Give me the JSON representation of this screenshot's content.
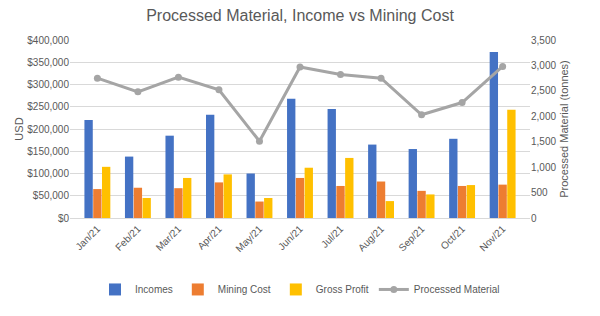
{
  "chart_data": {
    "type": "bar",
    "title": "Processed Material, Income vs Mining Cost",
    "y_label": "USD",
    "y2_label": "Processed Material (tonnes)",
    "categories": [
      "Jan/21",
      "Feb/21",
      "Mar/21",
      "Apr/21",
      "May/21",
      "Jun/21",
      "Jul/21",
      "Aug/21",
      "Sep/21",
      "Oct/21",
      "Nov/21"
    ],
    "series": [
      {
        "name": "Incomes",
        "type": "bar",
        "color": "#4472c4",
        "values": [
          220000,
          138000,
          185000,
          232000,
          100000,
          268000,
          245000,
          165000,
          155000,
          178000,
          373000
        ]
      },
      {
        "name": "Mining Cost",
        "type": "bar",
        "color": "#ed7d31",
        "values": [
          65000,
          68000,
          67000,
          80000,
          37000,
          90000,
          72000,
          82000,
          61000,
          72000,
          75000
        ]
      },
      {
        "name": "Gross Profit",
        "type": "bar",
        "color": "#ffc000",
        "values": [
          115000,
          45000,
          90000,
          98000,
          45000,
          113000,
          135000,
          38000,
          53000,
          74000,
          243000
        ]
      },
      {
        "name": "Processed Material",
        "type": "line",
        "axis": "y2",
        "color": "#a5a5a5",
        "marker": "circle",
        "values": [
          2750,
          2480,
          2770,
          2520,
          1510,
          2970,
          2820,
          2750,
          2030,
          2270,
          2980
        ]
      }
    ],
    "ylim": [
      0,
      400000
    ],
    "yticks": [
      {
        "value": 0,
        "label": "$0"
      },
      {
        "value": 50000,
        "label": "$50,000"
      },
      {
        "value": 100000,
        "label": "$100,000"
      },
      {
        "value": 150000,
        "label": "$150,000"
      },
      {
        "value": 200000,
        "label": "$200,000"
      },
      {
        "value": 250000,
        "label": "$250,000"
      },
      {
        "value": 300000,
        "label": "$300,000"
      },
      {
        "value": 350000,
        "label": "$350,000"
      },
      {
        "value": 400000,
        "label": "$400,000"
      }
    ],
    "y2lim": [
      0,
      3500
    ],
    "y2ticks": [
      0,
      500,
      {
        "value": 1000,
        "label": "1,000"
      },
      {
        "value": 1500,
        "label": "1,500"
      },
      {
        "value": 2000,
        "label": "2,000"
      },
      {
        "value": 2500,
        "label": "2,500"
      },
      {
        "value": 3000,
        "label": "3,000"
      },
      {
        "value": 3500,
        "label": "3,500"
      }
    ],
    "grid": true,
    "legend": "bottom"
  }
}
